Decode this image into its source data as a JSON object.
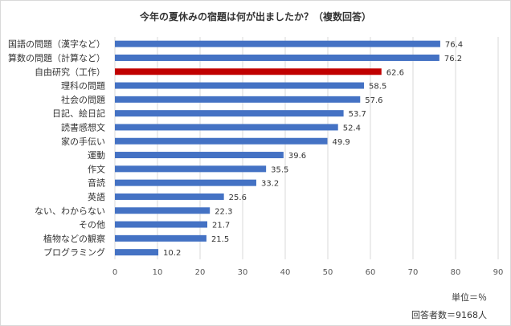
{
  "chart_data": {
    "type": "bar",
    "orientation": "horizontal",
    "title": "今年の夏休みの宿題は何が出ましたか？（複数回答）",
    "categories": [
      "国語の問題（漢字など）",
      "算数の問題（計算など）",
      "自由研究（工作）",
      "理科の問題",
      "社会の問題",
      "日記、絵日記",
      "読書感想文",
      "家の手伝い",
      "運動",
      "作文",
      "音読",
      "英語",
      "ない、わからない",
      "その他",
      "植物などの観察",
      "プログラミング"
    ],
    "values": [
      76.4,
      76.2,
      62.6,
      58.5,
      57.6,
      53.7,
      52.4,
      49.9,
      39.6,
      35.5,
      33.2,
      25.6,
      22.3,
      21.7,
      21.5,
      10.2
    ],
    "value_labels": [
      "76.4",
      "76.2",
      "62.6",
      "58.5",
      "57.6",
      "53.7",
      "52.4",
      "49.9",
      "39.6",
      "35.5",
      "33.2",
      "25.6",
      "22.3",
      "21.7",
      "21.5",
      "10.2"
    ],
    "highlight_category": "自由研究（工作）",
    "xlim": [
      0,
      90
    ],
    "xticks": [
      "0",
      "10",
      "20",
      "30",
      "40",
      "50",
      "60",
      "70",
      "80",
      "90"
    ],
    "grid": true,
    "colors": {
      "bar": "#4472c4",
      "highlight": "#c00000",
      "grid": "#d9d9d9"
    }
  },
  "notes": {
    "unit": "単位＝％",
    "respondents": "回答者数＝9168人"
  }
}
